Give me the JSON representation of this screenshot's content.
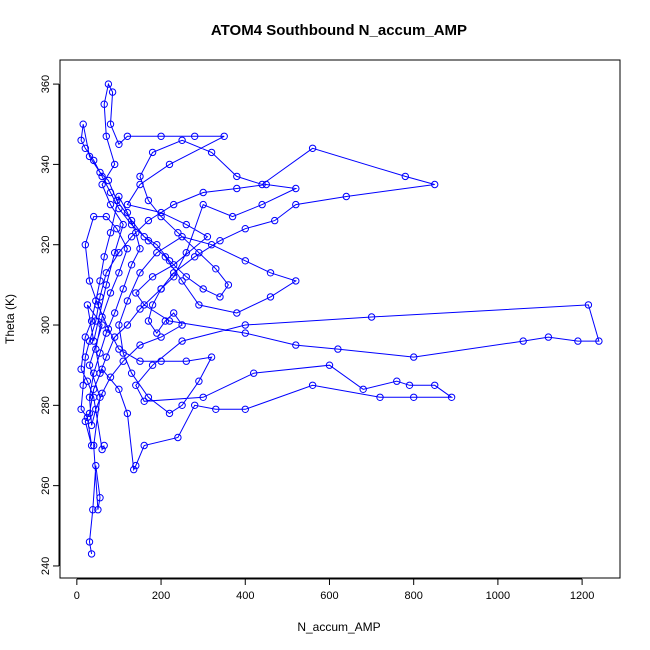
{
  "chart_data": {
    "type": "scatter",
    "title": "ATOM4 Southbound N_accum_AMP",
    "xlabel": "N_accum_AMP",
    "ylabel": "Theta (K)",
    "xlim": [
      -40,
      1290
    ],
    "ylim": [
      237,
      366
    ],
    "xticks": [
      0,
      200,
      400,
      600,
      800,
      1000,
      1200
    ],
    "yticks": [
      240,
      260,
      280,
      300,
      320,
      340,
      360
    ],
    "grid": false,
    "legend": "none",
    "marker": "open-circle",
    "connected": true,
    "color": "#0000ff",
    "series": [
      {
        "values": [
          [
            35,
            243
          ],
          [
            30,
            246
          ],
          [
            38,
            254
          ],
          [
            45,
            265
          ],
          [
            55,
            257
          ],
          [
            50,
            254
          ],
          [
            40,
            270
          ],
          [
            55,
            282
          ],
          [
            30,
            290
          ],
          [
            60,
            300
          ],
          [
            25,
            305
          ],
          [
            40,
            296
          ],
          [
            70,
            310
          ],
          [
            90,
            318
          ],
          [
            110,
            325
          ],
          [
            80,
            330
          ],
          [
            60,
            335
          ],
          [
            90,
            340
          ],
          [
            70,
            347
          ],
          [
            65,
            355
          ],
          [
            75,
            360
          ],
          [
            85,
            358
          ],
          [
            80,
            350
          ],
          [
            100,
            345
          ],
          [
            120,
            347
          ],
          [
            200,
            347
          ],
          [
            280,
            347
          ],
          [
            350,
            347
          ],
          [
            220,
            340
          ],
          [
            150,
            335
          ],
          [
            120,
            330
          ],
          [
            200,
            328
          ],
          [
            260,
            325
          ],
          [
            310,
            322
          ],
          [
            230,
            315
          ],
          [
            180,
            312
          ],
          [
            140,
            308
          ],
          [
            160,
            305
          ],
          [
            220,
            301
          ],
          [
            400,
            298
          ],
          [
            520,
            295
          ],
          [
            620,
            294
          ],
          [
            800,
            292
          ],
          [
            1060,
            296
          ],
          [
            1120,
            297
          ],
          [
            1190,
            296
          ],
          [
            1240,
            296
          ],
          [
            1215,
            305
          ],
          [
            700,
            302
          ],
          [
            400,
            300
          ],
          [
            250,
            296
          ],
          [
            180,
            290
          ],
          [
            140,
            285
          ],
          [
            160,
            281
          ],
          [
            300,
            282
          ],
          [
            420,
            288
          ],
          [
            600,
            290
          ],
          [
            680,
            284
          ],
          [
            760,
            286
          ],
          [
            790,
            285
          ],
          [
            850,
            285
          ],
          [
            890,
            282
          ],
          [
            800,
            282
          ],
          [
            720,
            282
          ],
          [
            560,
            285
          ],
          [
            400,
            279
          ],
          [
            330,
            279
          ],
          [
            280,
            280
          ],
          [
            240,
            272
          ],
          [
            160,
            270
          ],
          [
            140,
            265
          ],
          [
            135,
            264
          ],
          [
            120,
            278
          ],
          [
            100,
            284
          ],
          [
            60,
            289
          ],
          [
            40,
            284
          ],
          [
            30,
            278
          ],
          [
            20,
            276
          ],
          [
            35,
            270
          ],
          [
            25,
            277
          ],
          [
            10,
            279
          ],
          [
            15,
            285
          ],
          [
            20,
            292
          ],
          [
            30,
            296
          ],
          [
            45,
            301
          ],
          [
            55,
            307
          ],
          [
            70,
            313
          ],
          [
            100,
            318
          ],
          [
            130,
            322
          ],
          [
            170,
            326
          ],
          [
            230,
            330
          ],
          [
            300,
            333
          ],
          [
            380,
            334
          ],
          [
            450,
            335
          ],
          [
            520,
            334
          ],
          [
            440,
            330
          ],
          [
            370,
            327
          ],
          [
            300,
            330
          ],
          [
            260,
            318
          ],
          [
            230,
            312
          ],
          [
            200,
            309
          ],
          [
            150,
            304
          ],
          [
            120,
            300
          ],
          [
            90,
            297
          ],
          [
            70,
            292
          ],
          [
            55,
            288
          ],
          [
            45,
            294
          ],
          [
            60,
            302
          ],
          [
            80,
            308
          ],
          [
            100,
            313
          ],
          [
            120,
            319
          ],
          [
            95,
            324
          ],
          [
            70,
            327
          ],
          [
            40,
            327
          ],
          [
            20,
            320
          ],
          [
            30,
            311
          ],
          [
            50,
            305
          ],
          [
            75,
            299
          ],
          [
            100,
            294
          ],
          [
            150,
            291
          ],
          [
            200,
            291
          ],
          [
            260,
            291
          ],
          [
            320,
            292
          ],
          [
            290,
            286
          ],
          [
            250,
            280
          ],
          [
            220,
            278
          ],
          [
            170,
            282
          ],
          [
            130,
            288
          ],
          [
            110,
            293
          ],
          [
            100,
            300
          ],
          [
            120,
            306
          ],
          [
            150,
            313
          ],
          [
            190,
            318
          ],
          [
            250,
            322
          ],
          [
            320,
            320
          ],
          [
            400,
            316
          ],
          [
            460,
            313
          ],
          [
            520,
            311
          ],
          [
            460,
            307
          ],
          [
            380,
            303
          ],
          [
            290,
            305
          ],
          [
            250,
            311
          ],
          [
            210,
            317
          ],
          [
            170,
            321
          ],
          [
            130,
            325
          ],
          [
            100,
            329
          ],
          [
            80,
            333
          ],
          [
            60,
            337
          ],
          [
            40,
            341
          ],
          [
            20,
            344
          ],
          [
            10,
            346
          ],
          [
            15,
            350
          ],
          [
            30,
            342
          ],
          [
            55,
            338
          ],
          [
            75,
            336
          ],
          [
            95,
            331
          ],
          [
            130,
            326
          ],
          [
            160,
            322
          ],
          [
            190,
            320
          ],
          [
            220,
            316
          ],
          [
            260,
            312
          ],
          [
            300,
            309
          ],
          [
            340,
            307
          ],
          [
            360,
            310
          ],
          [
            330,
            314
          ],
          [
            290,
            318
          ],
          [
            240,
            323
          ],
          [
            200,
            327
          ],
          [
            170,
            331
          ],
          [
            150,
            337
          ],
          [
            180,
            343
          ],
          [
            250,
            346
          ],
          [
            320,
            343
          ],
          [
            380,
            337
          ],
          [
            440,
            335
          ],
          [
            560,
            344
          ],
          [
            780,
            337
          ],
          [
            850,
            335
          ],
          [
            640,
            332
          ],
          [
            520,
            330
          ],
          [
            470,
            326
          ],
          [
            400,
            324
          ],
          [
            340,
            321
          ],
          [
            280,
            317
          ],
          [
            230,
            313
          ],
          [
            200,
            309
          ],
          [
            180,
            305
          ],
          [
            170,
            301
          ],
          [
            190,
            298
          ],
          [
            210,
            301
          ],
          [
            230,
            303
          ],
          [
            250,
            300
          ],
          [
            200,
            297
          ],
          [
            150,
            295
          ],
          [
            110,
            291
          ],
          [
            80,
            287
          ],
          [
            60,
            283
          ],
          [
            45,
            279
          ],
          [
            35,
            275
          ],
          [
            30,
            282
          ],
          [
            40,
            288
          ],
          [
            55,
            293
          ],
          [
            70,
            298
          ],
          [
            90,
            303
          ],
          [
            110,
            309
          ],
          [
            130,
            315
          ],
          [
            150,
            319
          ],
          [
            140,
            323
          ],
          [
            120,
            328
          ],
          [
            100,
            332
          ],
          [
            80,
            323
          ],
          [
            65,
            317
          ],
          [
            55,
            311
          ],
          [
            45,
            306
          ],
          [
            35,
            301
          ],
          [
            20,
            297
          ],
          [
            10,
            289
          ],
          [
            25,
            286
          ],
          [
            40,
            282
          ],
          [
            60,
            269
          ],
          [
            65,
            270
          ]
        ]
      }
    ]
  }
}
